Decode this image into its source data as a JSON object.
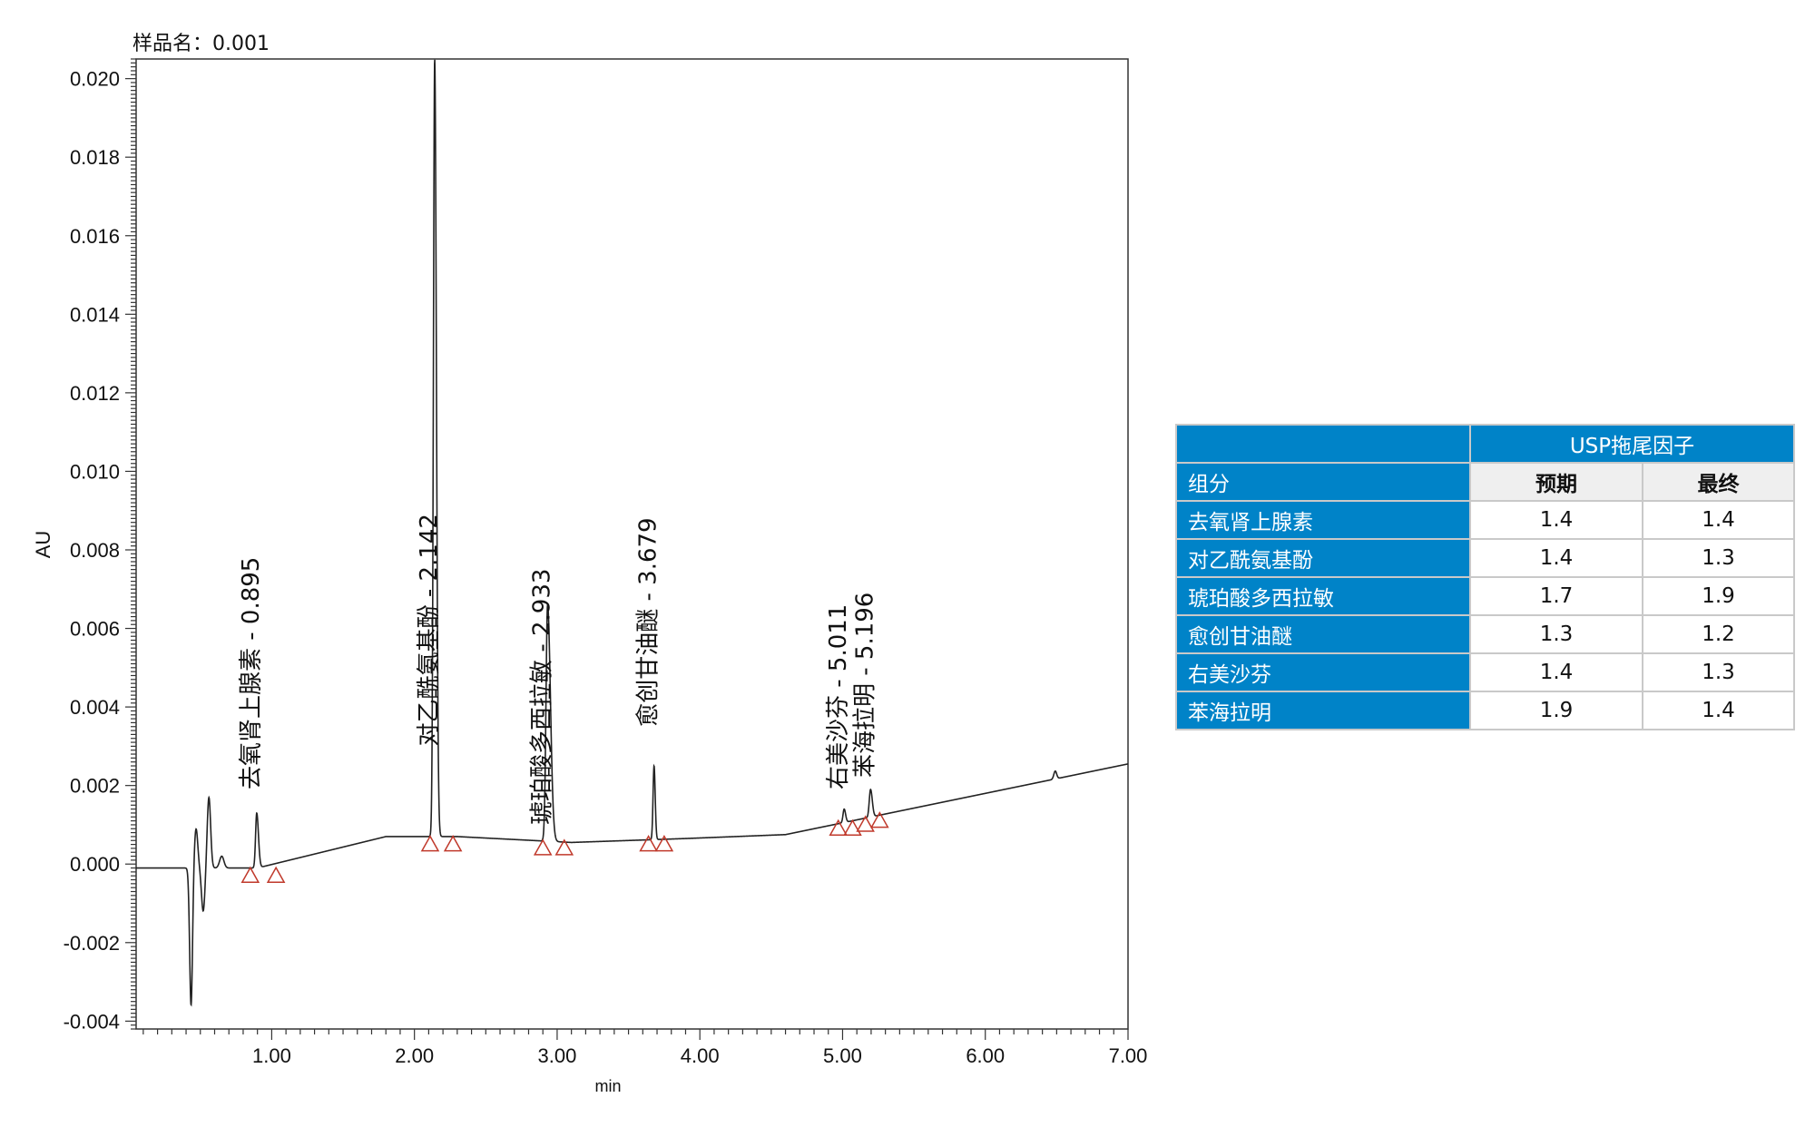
{
  "chart_data": {
    "type": "line",
    "sample_label": "样品名：0.001",
    "xlabel": "min",
    "ylabel": "AU",
    "xlim": [
      0.05,
      7.0
    ],
    "ylim": [
      -0.0042,
      0.0205
    ],
    "x_ticks": [
      "1.00",
      "2.00",
      "3.00",
      "4.00",
      "5.00",
      "6.00",
      "7.00"
    ],
    "y_ticks": [
      "-0.004",
      "-0.002",
      "0.000",
      "0.002",
      "0.004",
      "0.006",
      "0.008",
      "0.010",
      "0.012",
      "0.014",
      "0.016",
      "0.018",
      "0.020"
    ],
    "grid": false,
    "line_color": "#222222",
    "marker_color": "#c0392b",
    "peaks": [
      {
        "rt": 0.895,
        "height": 0.0013,
        "label": "去氧肾上腺素 - 0.895"
      },
      {
        "rt": 2.142,
        "height": 0.0205,
        "label": "对乙酰氨基酚 - 2.142"
      },
      {
        "rt": 2.933,
        "height": 0.0066,
        "label": "琥珀酸多西拉敏 - 2.933"
      },
      {
        "rt": 3.679,
        "height": 0.0025,
        "label": "愈创甘油醚 - 3.679"
      },
      {
        "rt": 5.011,
        "height": 0.0014,
        "label": "右美沙芬 - 5.011"
      },
      {
        "rt": 5.196,
        "height": 0.0019,
        "label": "苯海拉明 - 5.196"
      }
    ],
    "integration_markers": [
      [
        0.85,
        -0.0003
      ],
      [
        1.03,
        -0.0003
      ],
      [
        2.11,
        0.0005
      ],
      [
        2.27,
        0.0005
      ],
      [
        2.9,
        0.0004
      ],
      [
        3.05,
        0.0004
      ],
      [
        3.64,
        0.0005
      ],
      [
        3.75,
        0.0005
      ],
      [
        4.97,
        0.0009
      ],
      [
        5.07,
        0.0009
      ],
      [
        5.16,
        0.001
      ],
      [
        5.26,
        0.0011
      ]
    ]
  },
  "table": {
    "header": "USP拖尾因子",
    "col_component": "组分",
    "col_expected": "预期",
    "col_final": "最终",
    "rows": [
      {
        "name": "去氧肾上腺素",
        "expected": "1.4",
        "final": "1.4"
      },
      {
        "name": "对乙酰氨基酚",
        "expected": "1.4",
        "final": "1.3"
      },
      {
        "name": "琥珀酸多西拉敏",
        "expected": "1.7",
        "final": "1.9"
      },
      {
        "name": "愈创甘油醚",
        "expected": "1.3",
        "final": "1.2"
      },
      {
        "name": "右美沙芬",
        "expected": "1.4",
        "final": "1.3"
      },
      {
        "name": "苯海拉明",
        "expected": "1.9",
        "final": "1.4"
      }
    ]
  }
}
